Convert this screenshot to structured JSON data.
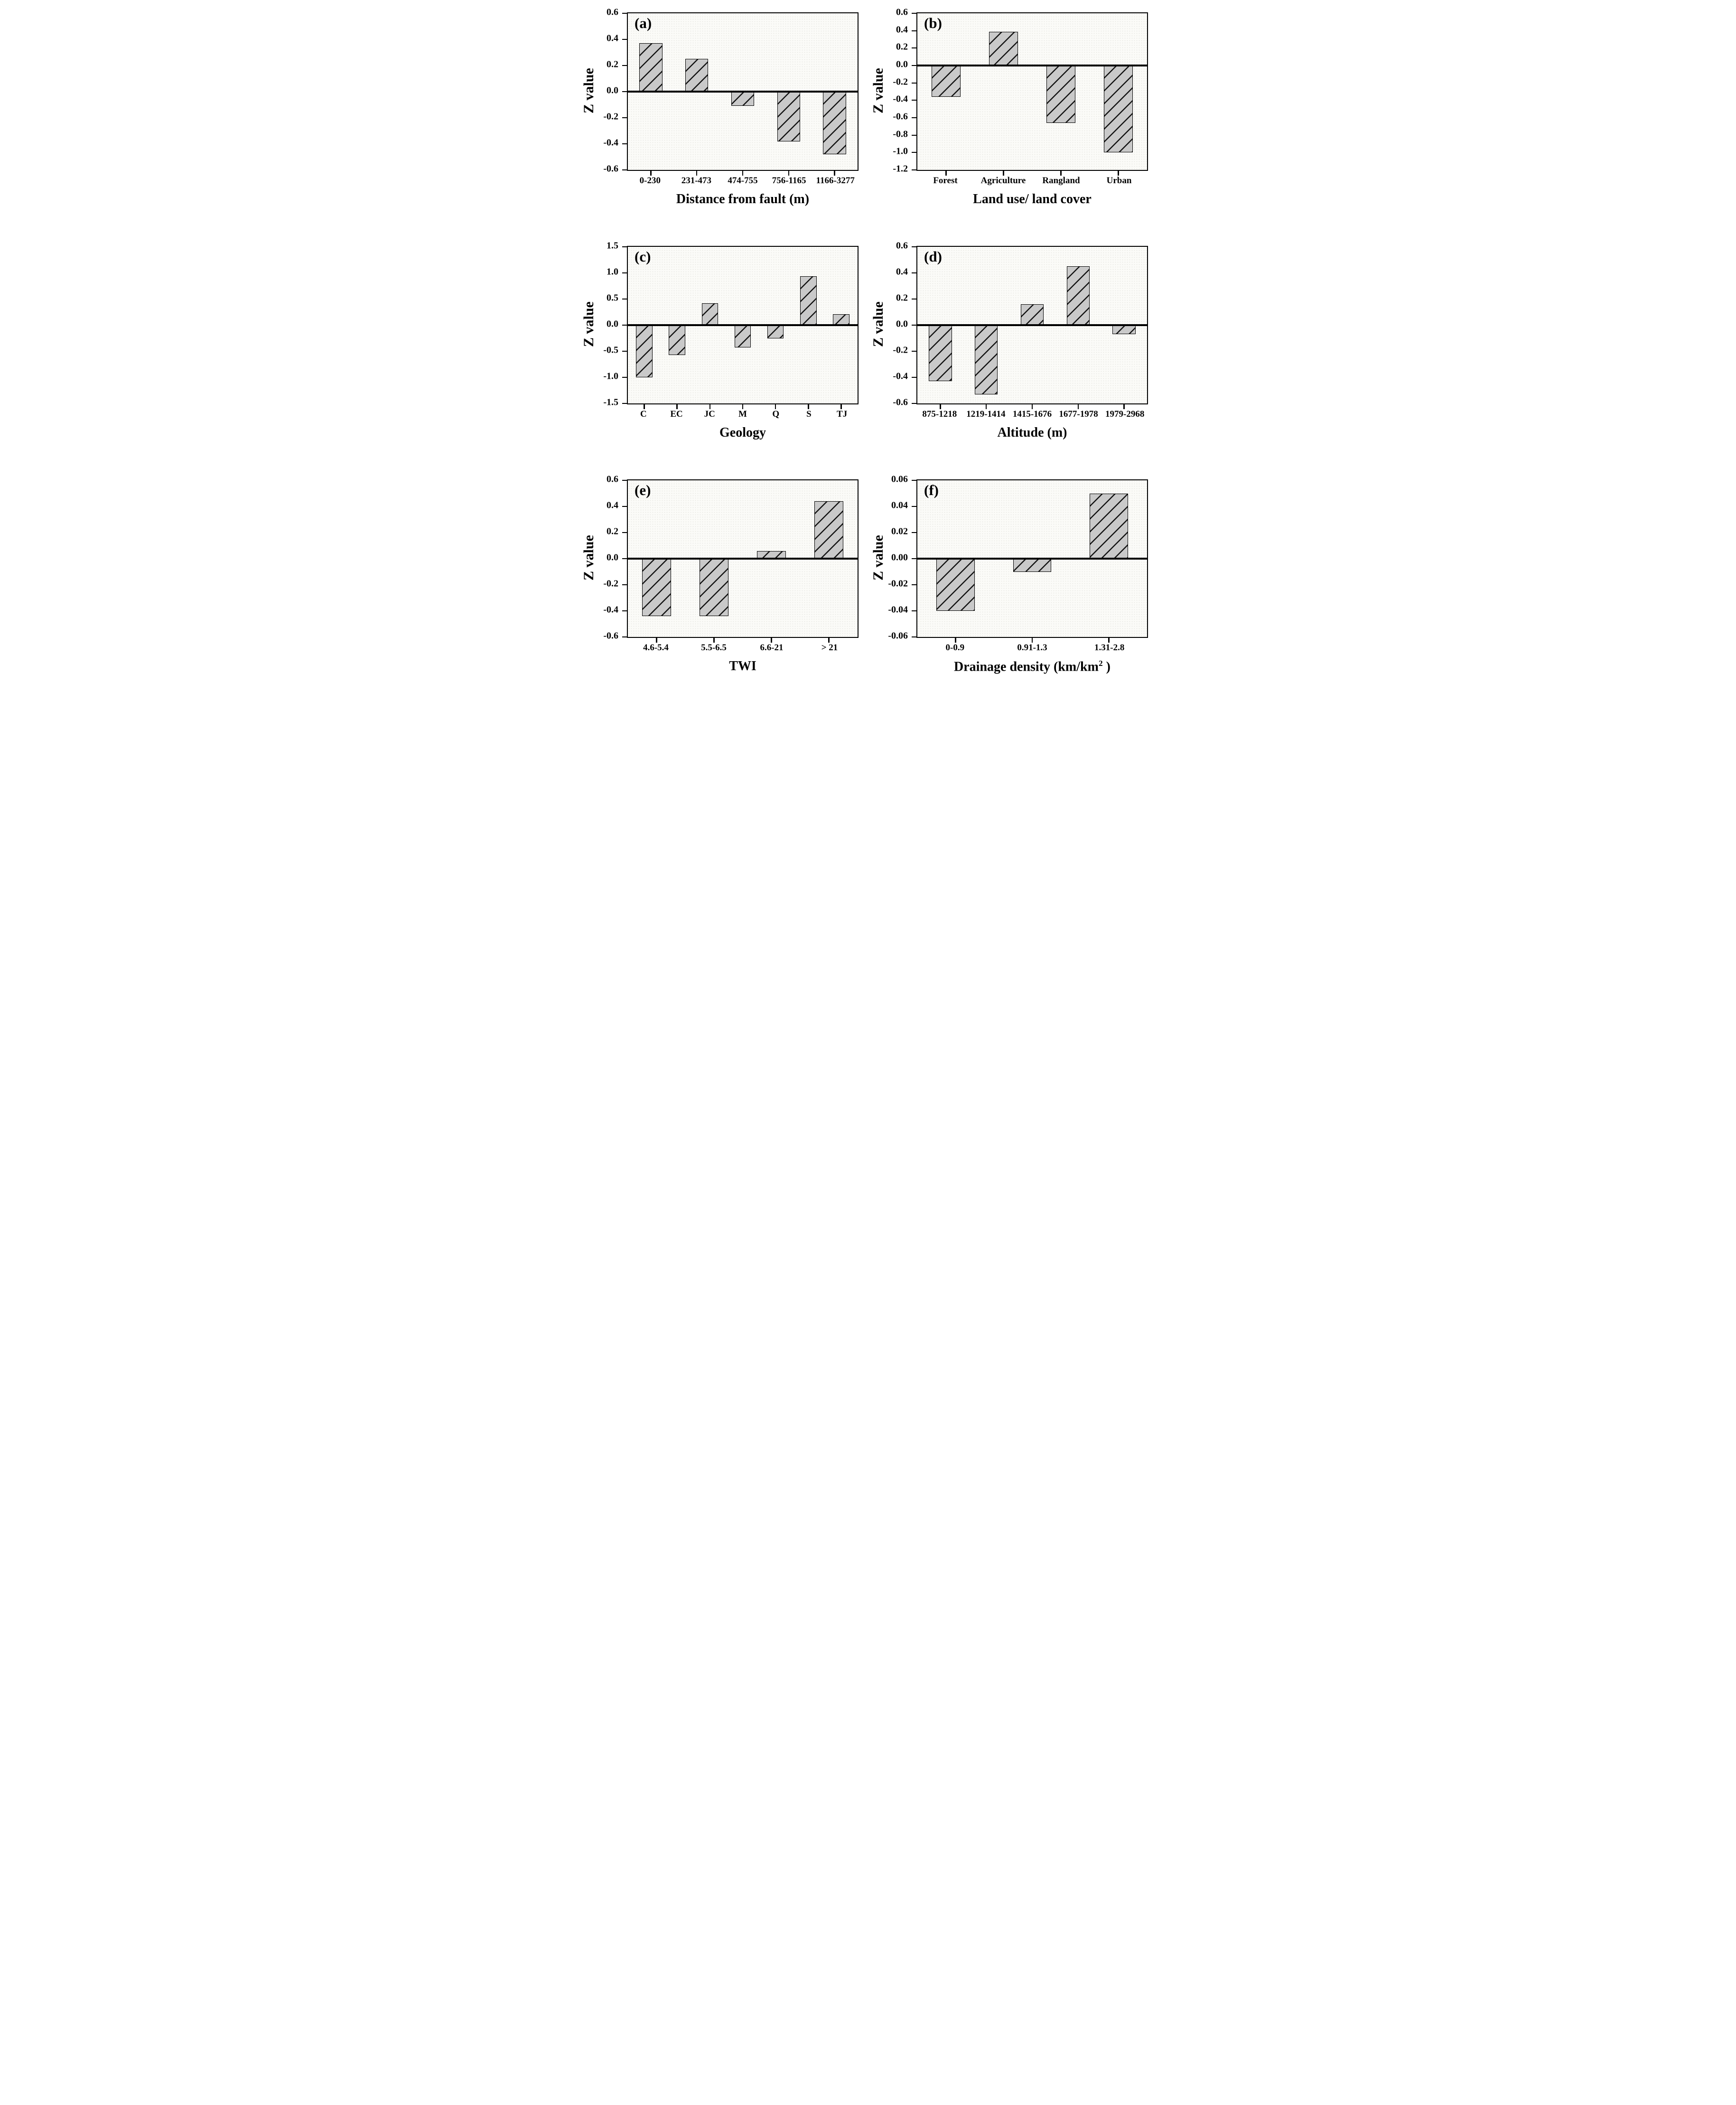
{
  "style": {
    "bar_fill": "#c9c9c9",
    "hatch_line_color": "#141414",
    "hatch_direction": "forward-diagonal",
    "axis_color": "#000000",
    "text_color": "#000000"
  },
  "chart_data": [
    {
      "panel_label": "(a)",
      "type": "bar",
      "categories": [
        "0-230",
        "231-473",
        "474-755",
        "756-1165",
        "1166-3277"
      ],
      "values": [
        0.37,
        0.25,
        -0.11,
        -0.38,
        -0.48
      ],
      "title": "",
      "xlabel": "Distance from fault (m)",
      "ylabel": "Z value",
      "ylim": [
        -0.6,
        0.6
      ],
      "yticks": [
        "0.6",
        "0.4",
        "0.2",
        "0.0",
        "-0.2",
        "-0.4",
        "-0.6"
      ],
      "grid": false,
      "legend": "none"
    },
    {
      "panel_label": "(b)",
      "type": "bar",
      "categories": [
        "Forest",
        "Agriculture",
        "Rangland",
        "Urban"
      ],
      "values": [
        -0.36,
        0.39,
        -0.66,
        -1.0
      ],
      "title": "",
      "xlabel": "Land use/ land cover",
      "ylabel": "Z value",
      "ylim": [
        -1.2,
        0.6
      ],
      "yticks": [
        "0.6",
        "0.4",
        "0.2",
        "0.0",
        "-0.2",
        "-0.4",
        "-0.6",
        "-0.8",
        "-1.0",
        "-1.2"
      ],
      "grid": false,
      "legend": "none"
    },
    {
      "panel_label": "(c)",
      "type": "bar",
      "categories": [
        "C",
        "EC",
        "JC",
        "M",
        "Q",
        "S",
        "TJ"
      ],
      "values": [
        -1.0,
        -0.57,
        0.42,
        -0.43,
        -0.25,
        0.94,
        0.21
      ],
      "title": "",
      "xlabel": "Geology",
      "ylabel": "Z value",
      "ylim": [
        -1.5,
        1.5
      ],
      "yticks": [
        "1.5",
        "1.0",
        "0.5",
        "0.0",
        "-0.5",
        "-1.0",
        "-1.5"
      ],
      "grid": false,
      "legend": "none"
    },
    {
      "panel_label": "(d)",
      "type": "bar",
      "categories": [
        "875-1218",
        "1219-1414",
        "1415-1676",
        "1677-1978",
        "1979-2968"
      ],
      "values": [
        -0.43,
        -0.53,
        0.16,
        0.45,
        -0.07
      ],
      "title": "",
      "xlabel": "Altitude (m)",
      "ylabel": "Z value",
      "ylim": [
        -0.6,
        0.6
      ],
      "yticks": [
        "0.6",
        "0.4",
        "0.2",
        "0.0",
        "-0.2",
        "-0.4",
        "-0.6"
      ],
      "grid": false,
      "legend": "none"
    },
    {
      "panel_label": "(e)",
      "type": "bar",
      "categories": [
        "4.6-5.4",
        "5.5-6.5",
        "6.6-21",
        "> 21"
      ],
      "values": [
        -0.44,
        -0.44,
        0.06,
        0.44
      ],
      "title": "",
      "xlabel": "TWI",
      "ylabel": "Z value",
      "ylim": [
        -0.6,
        0.6
      ],
      "yticks": [
        "0.6",
        "0.4",
        "0.2",
        "0.0",
        "-0.2",
        "-0.4",
        "-0.6"
      ],
      "grid": false,
      "legend": "none"
    },
    {
      "panel_label": "(f)",
      "type": "bar",
      "categories": [
        "0-0.9",
        "0.91-1.3",
        "1.31-2.8"
      ],
      "values": [
        -0.04,
        -0.01,
        0.05
      ],
      "title": "",
      "xlabel": "Drainage density (km/km^2 )",
      "ylabel": "Z value",
      "ylim": [
        -0.06,
        0.06
      ],
      "yticks": [
        "0.06",
        "0.04",
        "0.02",
        "0.00",
        "-0.02",
        "-0.04",
        "-0.06"
      ],
      "grid": false,
      "legend": "none"
    }
  ]
}
